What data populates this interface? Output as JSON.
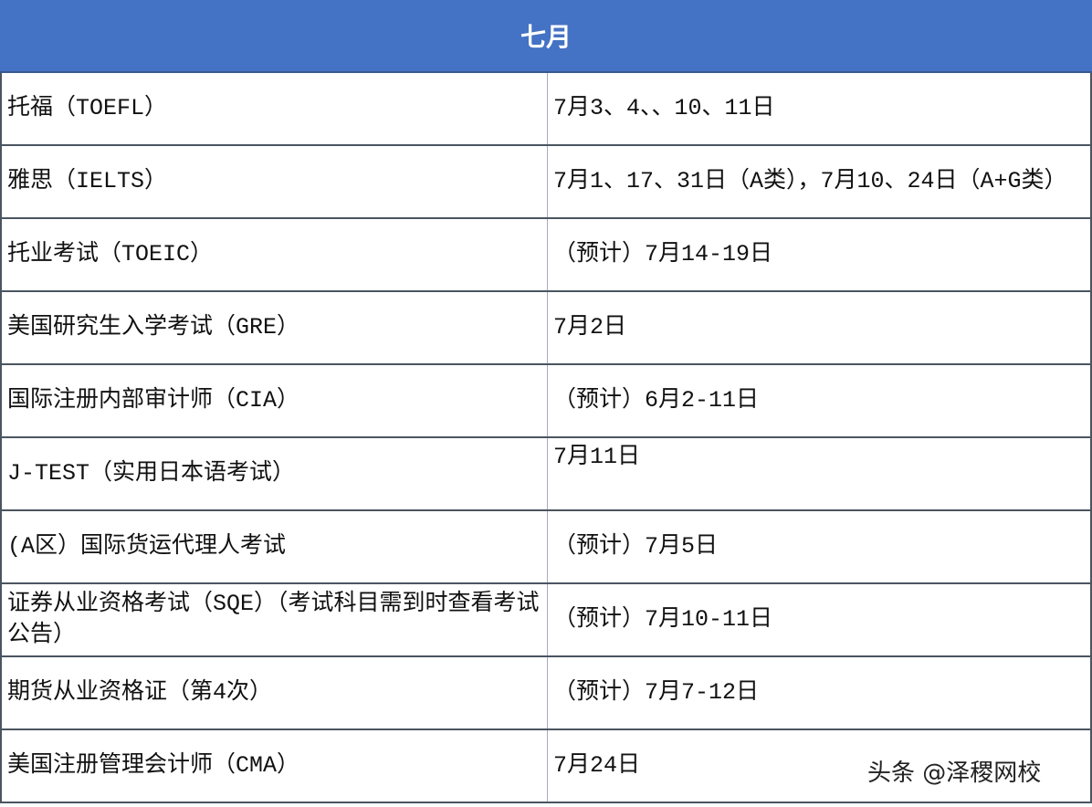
{
  "header": {
    "title": "七月"
  },
  "rows": [
    {
      "exam": "托福（TOEFL）",
      "date": "7月3、4、、10、11日"
    },
    {
      "exam": "雅思（IELTS）",
      "date": "7月1、17、31日（A类），7月10、24日（A+G类）"
    },
    {
      "exam": "托业考试（TOEIC）",
      "date": "（预计）7月14-19日"
    },
    {
      "exam": "美国研究生入学考试（GRE）",
      "date": "7月2日"
    },
    {
      "exam": "国际注册内部审计师（CIA）",
      "date": "（预计）6月2-11日"
    },
    {
      "exam": "J-TEST（实用日本语考试）",
      "date": "7月11日"
    },
    {
      "exam": "(A区）国际货运代理人考试",
      "date": "（预计）7月5日"
    },
    {
      "exam": "证券从业资格考试（SQE）（考试科目需到时查看考试公告）",
      "date": "（预计）7月10-11日"
    },
    {
      "exam": "期货从业资格证（第4次）",
      "date": "（预计）7月7-12日"
    },
    {
      "exam": "美国注册管理会计师（CMA）",
      "date": "7月24日"
    }
  ],
  "watermark": "头条 @泽稷网校"
}
